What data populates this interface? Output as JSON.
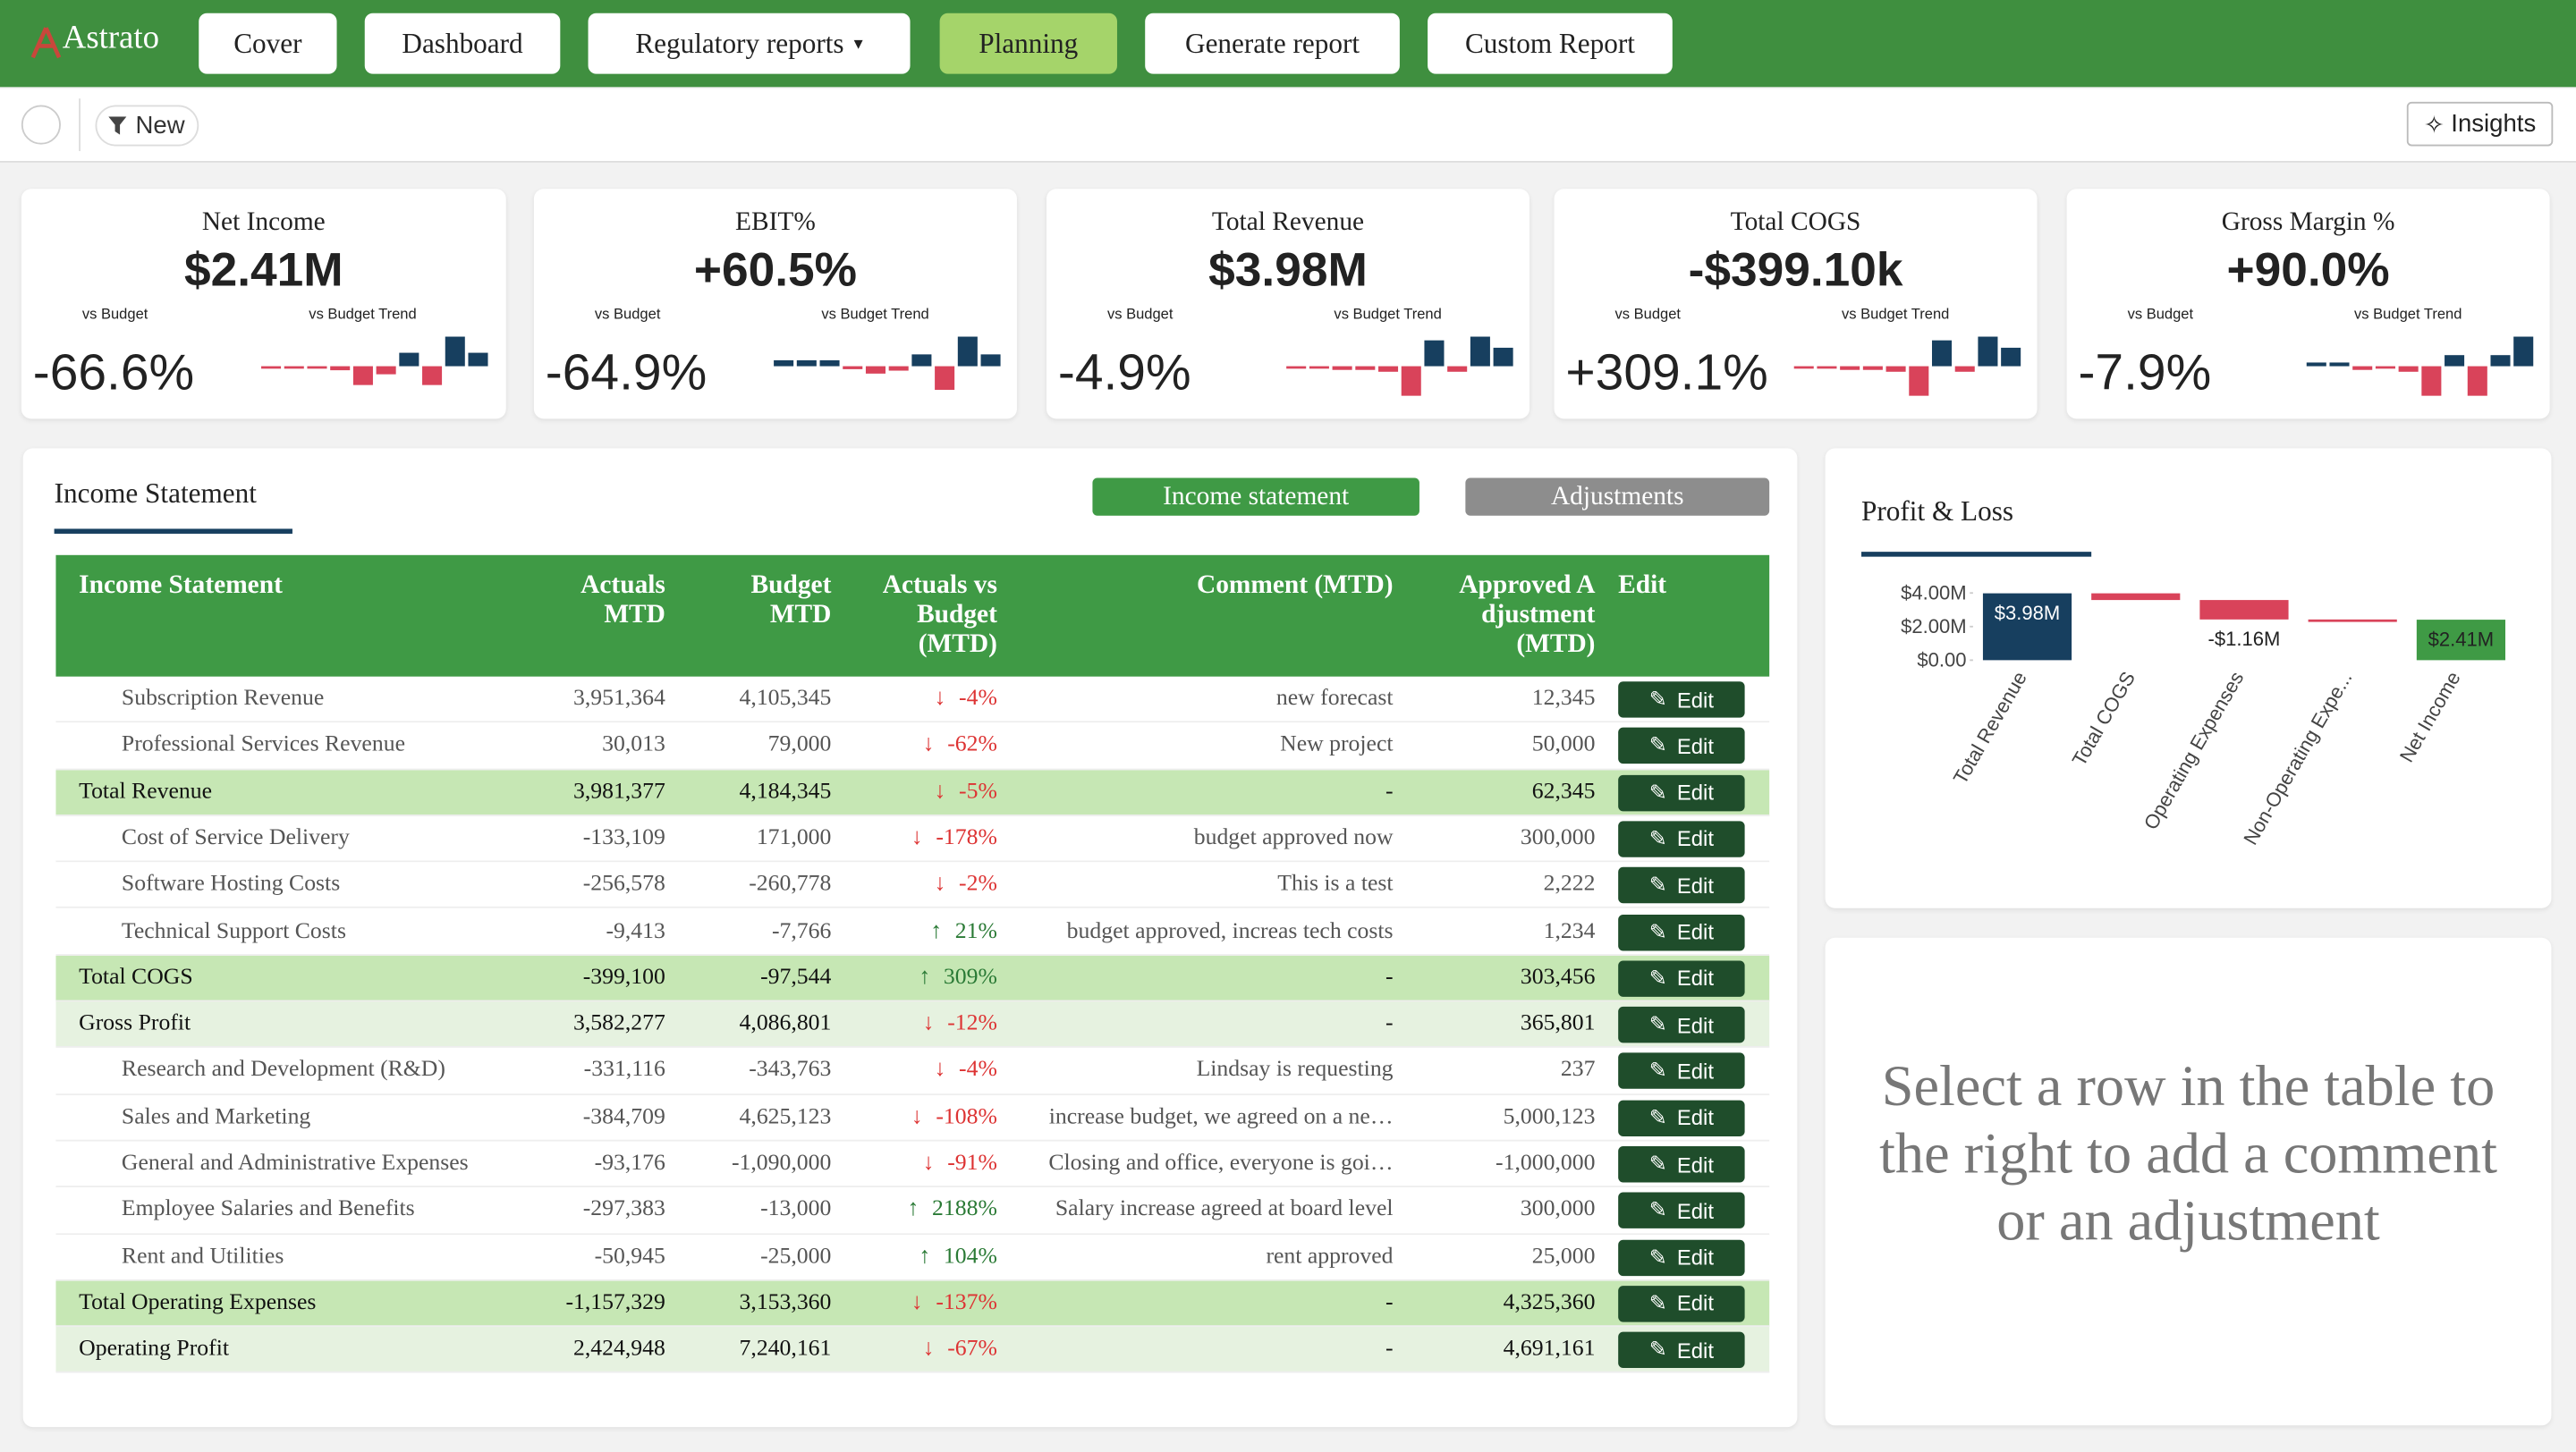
{
  "nav": {
    "logo": "Astrato",
    "items": [
      {
        "label": "Cover"
      },
      {
        "label": "Dashboard"
      },
      {
        "label": "Regulatory reports",
        "dropdown": true
      },
      {
        "label": "Planning",
        "selected": true
      },
      {
        "label": "Generate report"
      },
      {
        "label": "Custom Report"
      }
    ]
  },
  "toolbar": {
    "filter": "New",
    "insights": "Insights"
  },
  "kpis": [
    {
      "title": "Net Income",
      "value": "$2.41M",
      "vs_label": "vs Budget",
      "trend_label": "vs Budget Trend",
      "variance": "-66.6%",
      "trend": [
        -0.1,
        -0.1,
        -0.1,
        -0.3,
        -1.4,
        -0.6,
        1,
        -1.4,
        2.2,
        1
      ]
    },
    {
      "title": "EBIT%",
      "value": "+60.5%",
      "vs_label": "vs Budget",
      "trend_label": "vs Budget Trend",
      "variance": "-64.9%",
      "trend": [
        0.4,
        0.4,
        0.4,
        -0.2,
        -0.5,
        -0.3,
        0.8,
        -1.6,
        2,
        0.8
      ]
    },
    {
      "title": "Total Revenue",
      "value": "$3.98M",
      "vs_label": "vs Budget",
      "trend_label": "vs Budget Trend",
      "variance": "-4.9%",
      "trend": [
        -0.1,
        -0.1,
        -0.2,
        -0.2,
        -0.3,
        -1.6,
        1.4,
        -0.3,
        1.6,
        1
      ]
    },
    {
      "title": "Total COGS",
      "value": "-$399.10k",
      "vs_label": "vs Budget",
      "trend_label": "vs Budget Trend",
      "variance": "+309.1%",
      "trend": [
        -0.1,
        -0.1,
        -0.2,
        -0.2,
        -0.3,
        -1.6,
        1.4,
        -0.3,
        1.6,
        1
      ]
    },
    {
      "title": "Gross Margin %",
      "value": "+90.0%",
      "vs_label": "vs Budget",
      "trend_label": "vs Budget Trend",
      "variance": "-7.9%",
      "trend": [
        0.2,
        0.2,
        -0.2,
        -0.1,
        -0.3,
        -1.6,
        0.6,
        -1.6,
        0.6,
        1.6
      ]
    }
  ],
  "income": {
    "title": "Income Statement",
    "tabs": [
      "Income statement",
      "Adjustments"
    ],
    "edit_label": "Edit",
    "columns": [
      "Income Statement",
      "Actuals MTD",
      "Budget MTD",
      "Actuals vs Budget (MTD)",
      "Comment (MTD)",
      "Approved Adjustment (MTD)",
      "Edit"
    ],
    "rows": [
      {
        "level": "detail",
        "cells": [
          "Subscription Revenue",
          "3,951,364",
          "4,105,345",
          "-4%",
          "new forecast",
          "12,345"
        ]
      },
      {
        "level": "detail",
        "cells": [
          "Professional Services Revenue",
          "30,013",
          "79,000",
          "-62%",
          "New project",
          "50,000"
        ]
      },
      {
        "level": "total",
        "cells": [
          "Total Revenue",
          "3,981,377",
          "4,184,345",
          "-5%",
          "-",
          "62,345"
        ]
      },
      {
        "level": "detail",
        "cells": [
          "Cost of Service Delivery",
          "-133,109",
          "171,000",
          "-178%",
          "budget approved now",
          "300,000"
        ]
      },
      {
        "level": "detail",
        "cells": [
          "Software Hosting Costs",
          "-256,578",
          "-260,778",
          "-2%",
          "This is a test",
          "2,222"
        ]
      },
      {
        "level": "detail",
        "cells": [
          "Technical Support Costs",
          "-9,413",
          "-7,766",
          "21%",
          "budget approved, increas tech costs",
          "1,234"
        ]
      },
      {
        "level": "total",
        "cells": [
          "Total COGS",
          "-399,100",
          "-97,544",
          "309%",
          "-",
          "303,456"
        ]
      },
      {
        "level": "subtotal",
        "cells": [
          "Gross Profit",
          "3,582,277",
          "4,086,801",
          "-12%",
          "-",
          "365,801"
        ]
      },
      {
        "level": "detail",
        "cells": [
          "Research and Development (R&D)",
          "-331,116",
          "-343,763",
          "-4%",
          "Lindsay is requesting",
          "237"
        ]
      },
      {
        "level": "detail",
        "cells": [
          "Sales and Marketing",
          "-384,709",
          "4,625,123",
          "-108%",
          "increase budget, we agreed on a ne…",
          "5,000,123"
        ]
      },
      {
        "level": "detail",
        "cells": [
          "General and Administrative Expenses",
          "-93,176",
          "-1,090,000",
          "-91%",
          "Closing and office, everyone is goi…",
          "-1,000,000"
        ]
      },
      {
        "level": "detail",
        "cells": [
          "Employee Salaries and Benefits",
          "-297,383",
          "-13,000",
          "2188%",
          "Salary increase agreed at board level",
          "300,000"
        ]
      },
      {
        "level": "detail",
        "cells": [
          "Rent and Utilities",
          "-50,945",
          "-25,000",
          "104%",
          "rent approved",
          "25,000"
        ]
      },
      {
        "level": "total",
        "cells": [
          "Total Operating Expenses",
          "-1,157,329",
          "3,153,360",
          "-137%",
          "-",
          "4,325,360"
        ]
      },
      {
        "level": "subtotal",
        "cells": [
          "Operating Profit",
          "2,424,948",
          "7,240,161",
          "-67%",
          "-",
          "4,691,161"
        ]
      }
    ]
  },
  "chart_data": {
    "type": "waterfall",
    "title": "Profit & Loss",
    "categories": [
      "Total Revenue",
      "Total COGS",
      "Operating Expenses",
      "Non-Operating Expe...",
      "Net Income"
    ],
    "values": [
      3980000,
      -399100,
      -1157329,
      -10000,
      2410000
    ],
    "value_labels": [
      "$3.98M",
      null,
      "-$1.16M",
      null,
      "$2.41M"
    ],
    "measures": [
      "absolute",
      "relative",
      "relative",
      "relative",
      "absolute"
    ],
    "colors": [
      "#173f5f",
      "#d9435a",
      "#d9435a",
      "#d9435a",
      "#3f9a45"
    ],
    "ylim": [
      0,
      4400000
    ],
    "yticks": [
      {
        "value": 0,
        "label": "$0.00"
      },
      {
        "value": 2000000,
        "label": "$2.00M"
      },
      {
        "value": 4000000,
        "label": "$4.00M"
      }
    ]
  },
  "placeholder": "Select a row in the table to the right to add a comment or an adjustment"
}
